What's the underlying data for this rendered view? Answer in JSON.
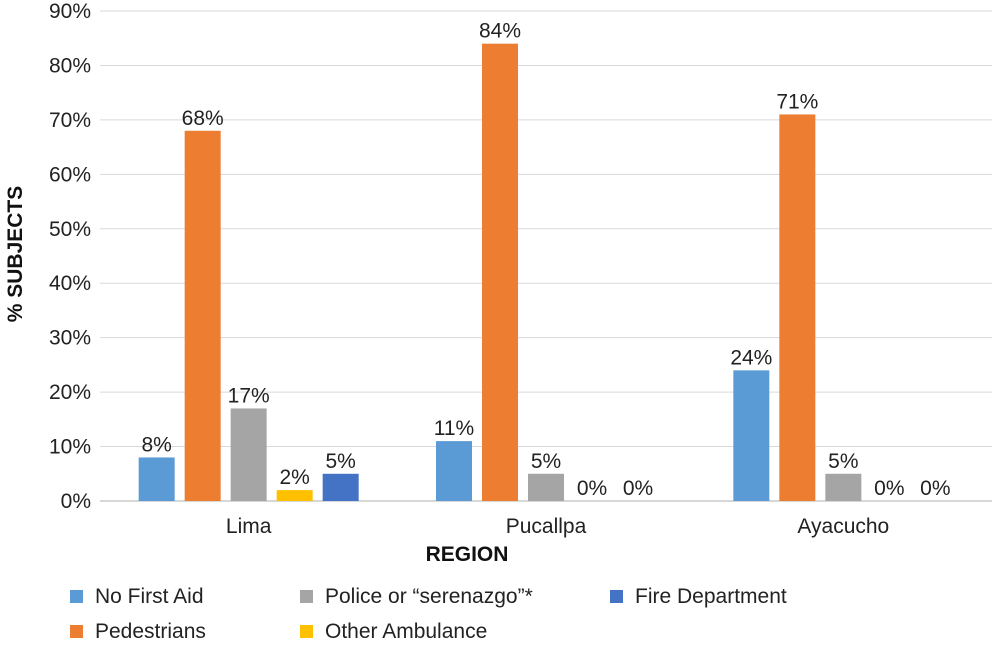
{
  "chart_data": {
    "type": "bar",
    "categories": [
      "Lima",
      "Pucallpa",
      "Ayacucho"
    ],
    "series": [
      {
        "name": "No First Aid",
        "color": "#5B9BD5",
        "values": [
          8,
          11,
          24
        ],
        "labels": [
          "8%",
          "11%",
          "24%"
        ]
      },
      {
        "name": "Pedestrians",
        "color": "#ED7D31",
        "values": [
          68,
          84,
          71
        ],
        "labels": [
          "68%",
          "84%",
          "71%"
        ]
      },
      {
        "name": "Police or “serenazgo”*",
        "color": "#A5A5A5",
        "values": [
          17,
          5,
          5
        ],
        "labels": [
          "17%",
          "5%",
          "5%"
        ]
      },
      {
        "name": "Other Ambulance",
        "color": "#FFC000",
        "values": [
          2,
          0,
          0
        ],
        "labels": [
          "2%",
          "0%",
          "0%"
        ]
      },
      {
        "name": "Fire Department",
        "color": "#4472C4",
        "values": [
          5,
          null,
          null
        ],
        "labels": [
          "5%",
          "0%",
          "0%"
        ]
      }
    ],
    "ylim": [
      0,
      90
    ],
    "yticks": [
      "0%",
      "10%",
      "20%",
      "30%",
      "40%",
      "50%",
      "60%",
      "70%",
      "80%",
      "90%"
    ],
    "ylabel": "% SUBJECTS",
    "xlabel": "REGION",
    "grid": true,
    "legend_position": "bottom",
    "legend_order": [
      "No First Aid",
      "Police or “serenazgo”*",
      "Fire Department",
      "Pedestrians",
      "Other Ambulance"
    ]
  }
}
